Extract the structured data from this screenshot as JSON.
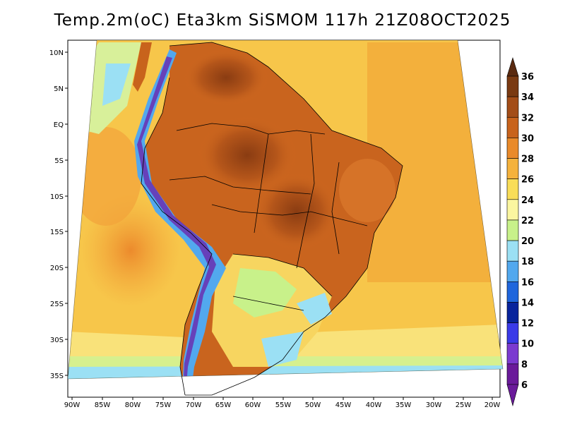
{
  "title": "Temp.2m(oC) Eta3km SiSMOM 117h 21Z08OCT2025",
  "lon_labels": [
    "90W",
    "85W",
    "80W",
    "75W",
    "70W",
    "65W",
    "60W",
    "55W",
    "50W",
    "45W",
    "40W",
    "35W",
    "30W",
    "25W",
    "20W"
  ],
  "lat_labels": [
    "10N",
    "5N",
    "EQ",
    "5S",
    "10S",
    "15S",
    "20S",
    "25S",
    "30S",
    "35S"
  ],
  "colorbar": {
    "labels": [
      "36",
      "34",
      "32",
      "30",
      "28",
      "26",
      "24",
      "22",
      "20",
      "18",
      "16",
      "14",
      "12",
      "10",
      "8",
      "6"
    ],
    "colors": [
      "#5a2a10",
      "#7a3a12",
      "#a34d18",
      "#c8631c",
      "#e98a2a",
      "#f5b23c",
      "#f9dd58",
      "#fbf6a0",
      "#c8f18a",
      "#9be0f4",
      "#52a8ee",
      "#1f66dc",
      "#08249c",
      "#3a3ae8",
      "#7b3ad0",
      "#6a1a9a"
    ]
  }
}
